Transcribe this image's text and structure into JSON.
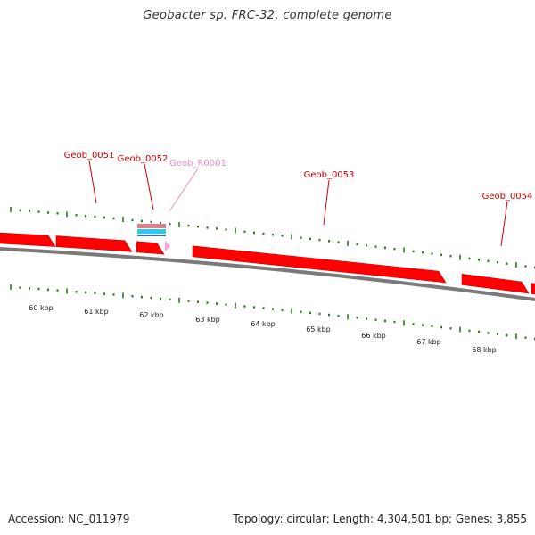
{
  "title": "Geobacter sp. FRC-32, complete genome",
  "footer": {
    "accession": "Accession: NC_011979",
    "topology": "Topology: circular; Length: 4,304,501 bp; Genes: 3,855"
  },
  "colors": {
    "cds": "#ff0000",
    "backbone": "#7a7a7a",
    "gc_tick": "#2d7a1f",
    "rna_label": "#f08cc0",
    "rna_feature": "#ffa0e0",
    "label": "#cc0000",
    "rrna_pink": "#e87c86",
    "rrna_cyan": "#2ec8f0"
  },
  "kbp_labels": [
    "60 kbp",
    "61 kbp",
    "62 kbp",
    "63 kbp",
    "64 kbp",
    "65 kbp",
    "66 kbp",
    "67 kbp",
    "68 kbp"
  ],
  "gene_labels": [
    {
      "name": "Geob_0051",
      "type": "cds"
    },
    {
      "name": "Geob_0052",
      "type": "cds"
    },
    {
      "name": "Geob_R0001",
      "type": "rna"
    },
    {
      "name": "Geob_0053",
      "type": "cds"
    },
    {
      "name": "Geob_0054",
      "type": "cds"
    }
  ]
}
